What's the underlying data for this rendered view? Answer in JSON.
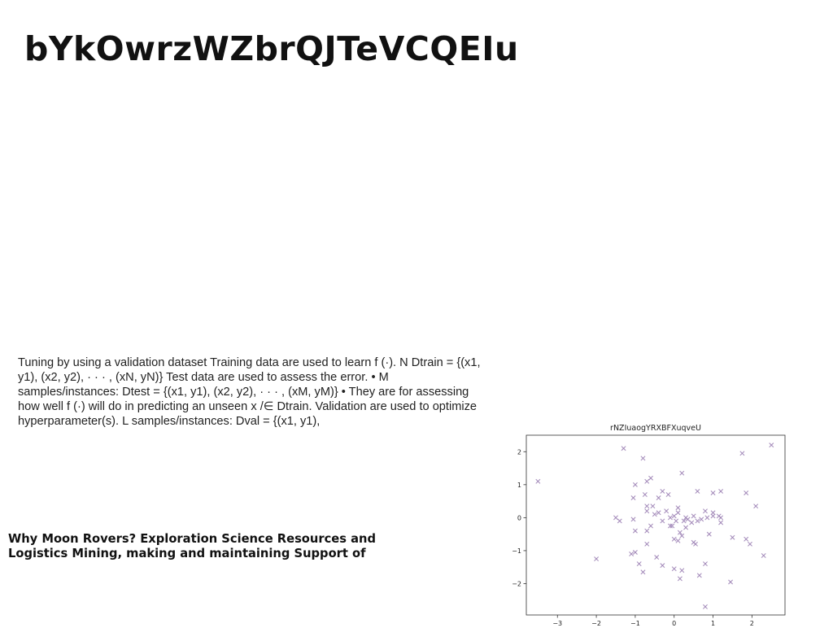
{
  "document": {
    "title": "bYkOwrzWZbrQJTeVCQEIu",
    "paragraph": "Tuning by using a validation dataset Training data are used to learn f (·). N Dtrain = {(x1, y1), (x2, y2), · · · , (xN, yN)} Test data are used to assess the error. • M samples/instances: Dtest = {(x1, y1), (x2, y2), · · · , (xM, yM)} • They are for assessing how well f (·) will do in predicting an unseen x /∈ Dtrain. Validation are used to optimize hyperparameter(s). L samples/instances: Dval = {(x1, y1),",
    "subheading": "Why Moon Rovers? Exploration Science Resources and Logistics Mining, making and maintaining Support of"
  },
  "chart_data": {
    "type": "scatter",
    "title": "rNZIuaogYRXBFXuqveU",
    "xlabel": "",
    "ylabel": "",
    "xlim": [
      -3.8,
      2.85
    ],
    "ylim": [
      -2.95,
      2.5
    ],
    "xticks": [
      -3,
      -2,
      -1,
      0,
      1,
      2
    ],
    "yticks": [
      -2,
      -1,
      0,
      1,
      2
    ],
    "marker": "x",
    "color": "#9b7fb3",
    "grid": false,
    "series": [
      {
        "points": [
          [
            -3.5,
            1.1
          ],
          [
            -2.0,
            -1.25
          ],
          [
            -1.3,
            2.1
          ],
          [
            -0.8,
            1.8
          ],
          [
            -1.0,
            1.0
          ],
          [
            -1.05,
            0.6
          ],
          [
            -1.5,
            0.0
          ],
          [
            -1.4,
            -0.1
          ],
          [
            -1.05,
            -0.05
          ],
          [
            -1.0,
            -0.4
          ],
          [
            -0.7,
            1.1
          ],
          [
            -0.6,
            1.2
          ],
          [
            -0.75,
            0.7
          ],
          [
            -0.7,
            0.35
          ],
          [
            -0.55,
            0.35
          ],
          [
            -0.7,
            0.2
          ],
          [
            -0.5,
            0.1
          ],
          [
            -0.4,
            0.6
          ],
          [
            -0.3,
            0.8
          ],
          [
            -0.15,
            0.7
          ],
          [
            -0.4,
            0.15
          ],
          [
            -0.2,
            0.2
          ],
          [
            0.1,
            0.3
          ],
          [
            0.1,
            0.15
          ],
          [
            -0.1,
            0.0
          ],
          [
            0.0,
            0.05
          ],
          [
            -0.3,
            -0.1
          ],
          [
            -0.6,
            -0.25
          ],
          [
            -0.7,
            -0.4
          ],
          [
            -0.1,
            -0.25
          ],
          [
            -0.7,
            -0.8
          ],
          [
            -1.1,
            -1.1
          ],
          [
            -1.0,
            -1.05
          ],
          [
            -0.9,
            -1.4
          ],
          [
            -0.8,
            -1.65
          ],
          [
            -0.45,
            -1.2
          ],
          [
            -0.3,
            -1.45
          ],
          [
            0.0,
            -1.55
          ],
          [
            0.2,
            -1.6
          ],
          [
            0.15,
            -1.85
          ],
          [
            0.2,
            1.35
          ],
          [
            0.6,
            0.8
          ],
          [
            1.0,
            0.75
          ],
          [
            1.2,
            0.8
          ],
          [
            0.8,
            0.2
          ],
          [
            1.0,
            0.15
          ],
          [
            0.5,
            0.05
          ],
          [
            0.3,
            0.0
          ],
          [
            0.35,
            -0.05
          ],
          [
            0.25,
            -0.1
          ],
          [
            0.6,
            -0.1
          ],
          [
            0.7,
            -0.05
          ],
          [
            0.85,
            0.0
          ],
          [
            1.0,
            0.05
          ],
          [
            1.15,
            0.05
          ],
          [
            1.2,
            0.0
          ],
          [
            1.2,
            -0.15
          ],
          [
            0.3,
            -0.3
          ],
          [
            0.15,
            -0.45
          ],
          [
            0.2,
            -0.55
          ],
          [
            0.1,
            -0.7
          ],
          [
            0.0,
            -0.65
          ],
          [
            0.5,
            -0.75
          ],
          [
            0.55,
            -0.8
          ],
          [
            0.9,
            -0.5
          ],
          [
            1.5,
            -0.6
          ],
          [
            1.85,
            -0.65
          ],
          [
            1.95,
            -0.8
          ],
          [
            2.1,
            0.35
          ],
          [
            1.85,
            0.75
          ],
          [
            1.75,
            1.95
          ],
          [
            2.5,
            2.2
          ],
          [
            2.3,
            -1.15
          ],
          [
            0.8,
            -1.4
          ],
          [
            0.65,
            -1.75
          ],
          [
            1.45,
            -1.95
          ],
          [
            0.8,
            -2.7
          ],
          [
            -0.05,
            -0.25
          ],
          [
            0.05,
            -0.1
          ],
          [
            0.45,
            -0.15
          ]
        ]
      }
    ]
  }
}
